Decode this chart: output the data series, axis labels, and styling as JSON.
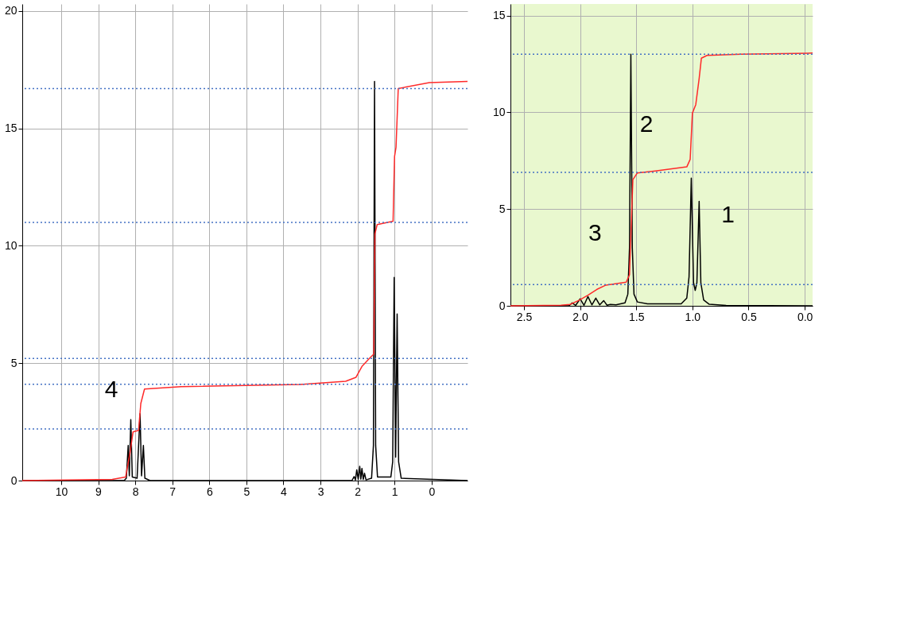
{
  "chart_data": [
    {
      "type": "line",
      "xlim": [
        11.05,
        -0.97
      ],
      "ylim": [
        0,
        20.3
      ],
      "xticks": [
        10,
        9,
        8,
        7,
        6,
        5,
        4,
        3,
        2,
        1,
        0
      ],
      "yticks": [
        0,
        5,
        10,
        15,
        20
      ],
      "grid": true,
      "marker": "none",
      "line_style": "solid",
      "series": [
        {
          "color": "#000000",
          "x": [
            11.05,
            8.3,
            8.24,
            8.19,
            8.16,
            8.12,
            8.08,
            7.95,
            7.87,
            7.83,
            7.78,
            7.74,
            7.6,
            2.15,
            2.09,
            2.055,
            2.02,
            1.98,
            1.94,
            1.91,
            1.88,
            1.845,
            1.81,
            1.77,
            1.62,
            1.57,
            1.54,
            1.51,
            1.46,
            1.1,
            1.05,
            1.01,
            0.97,
            0.93,
            0.89,
            0.82,
            -0.97
          ],
          "values": [
            0,
            0,
            0.1,
            1.5,
            0.2,
            2.6,
            0.15,
            0.1,
            2.85,
            0.2,
            1.5,
            0.1,
            0,
            0,
            0.17,
            0.03,
            0.46,
            0.05,
            0.61,
            0.06,
            0.52,
            0.05,
            0.31,
            0.03,
            0.1,
            1.5,
            17.0,
            1.5,
            0.15,
            0.15,
            0.8,
            8.65,
            1.0,
            7.1,
            0.8,
            0.1,
            0
          ]
        },
        {
          "color": "#ff2a2a",
          "x": [
            11.05,
            8.62,
            8.26,
            8.14,
            8.06,
            7.91,
            7.85,
            7.75,
            6.76,
            3.54,
            2.32,
            2.04,
            1.88,
            1.68,
            1.56,
            1.53,
            1.47,
            1.04,
            1.0,
            0.96,
            0.9,
            0.06,
            -0.97
          ],
          "values": [
            0,
            0.05,
            0.15,
            1.2,
            2.07,
            2.14,
            3.28,
            3.9,
            4.0,
            4.09,
            4.23,
            4.4,
            4.86,
            5.2,
            5.39,
            10.5,
            10.9,
            11.05,
            13.8,
            14.2,
            16.7,
            16.95,
            17.0
          ]
        }
      ],
      "ref_lines": [
        {
          "axis": "y",
          "value": 16.7,
          "color": "#4472c4",
          "line_style": "dotted"
        },
        {
          "axis": "y",
          "value": 11.0,
          "color": "#4472c4",
          "line_style": "dotted"
        },
        {
          "axis": "y",
          "value": 5.2,
          "color": "#4472c4",
          "line_style": "dotted"
        },
        {
          "axis": "y",
          "value": 4.1,
          "color": "#4472c4",
          "line_style": "dotted"
        },
        {
          "axis": "y",
          "value": 2.2,
          "color": "#4472c4",
          "line_style": "dotted"
        }
      ],
      "annotations": [
        "4"
      ]
    },
    {
      "type": "line",
      "xlim": [
        2.62,
        -0.07
      ],
      "ylim": [
        0,
        15.6
      ],
      "xticks": [
        {
          "value": 2.5,
          "label": "2.5"
        },
        {
          "value": 2,
          "label": "2.0"
        },
        {
          "value": 1.5,
          "label": "1.5"
        },
        {
          "value": 1,
          "label": "1.0"
        },
        {
          "value": 0.5,
          "label": "0.5"
        },
        {
          "value": 0,
          "label": "0.0"
        }
      ],
      "yticks": [
        0,
        5,
        10,
        15
      ],
      "grid": true,
      "marker": "none",
      "line_style": "solid",
      "series": [
        {
          "color": "#000000",
          "x": [
            2.62,
            2.1,
            2.07,
            2.04,
            2.0,
            1.965,
            1.93,
            1.895,
            1.86,
            1.825,
            1.79,
            1.76,
            1.73,
            1.68,
            1.6,
            1.575,
            1.56,
            1.548,
            1.535,
            1.52,
            1.49,
            1.4,
            1.1,
            1.05,
            1.03,
            1.01,
            0.99,
            0.975,
            0.96,
            0.94,
            0.925,
            0.9,
            0.85,
            0.7,
            -0.07
          ],
          "values": [
            0,
            0,
            0.15,
            0.02,
            0.36,
            0.03,
            0.48,
            0.05,
            0.4,
            0.05,
            0.27,
            0.03,
            0.07,
            0.05,
            0.15,
            0.6,
            3,
            13.0,
            3,
            0.6,
            0.2,
            0.1,
            0.1,
            0.4,
            1.5,
            6.6,
            1.2,
            0.8,
            1.2,
            5.4,
            1.2,
            0.3,
            0.08,
            0.02,
            0
          ]
        },
        {
          "color": "#ff2a2a",
          "x": [
            2.62,
            2.17,
            2.09,
            2.01,
            1.93,
            1.85,
            1.77,
            1.59,
            1.56,
            1.545,
            1.53,
            1.49,
            1.33,
            1.05,
            1.02,
            1.0,
            0.97,
            0.94,
            0.92,
            0.87,
            0.57,
            -0.07
          ],
          "values": [
            0,
            0.03,
            0.07,
            0.28,
            0.55,
            0.85,
            1.07,
            1.22,
            1.6,
            4.13,
            6.52,
            6.87,
            6.97,
            7.18,
            7.57,
            9.96,
            10.4,
            11.75,
            12.8,
            12.94,
            13.0,
            13.06
          ]
        }
      ],
      "ref_lines": [
        {
          "axis": "y",
          "value": 13.0,
          "color": "#4472c4",
          "line_style": "dotted"
        },
        {
          "axis": "y",
          "value": 6.9,
          "color": "#4472c4",
          "line_style": "dotted"
        },
        {
          "axis": "y",
          "value": 1.1,
          "color": "#4472c4",
          "line_style": "dotted"
        }
      ],
      "annotations": [
        "2",
        "1",
        "3"
      ]
    }
  ]
}
